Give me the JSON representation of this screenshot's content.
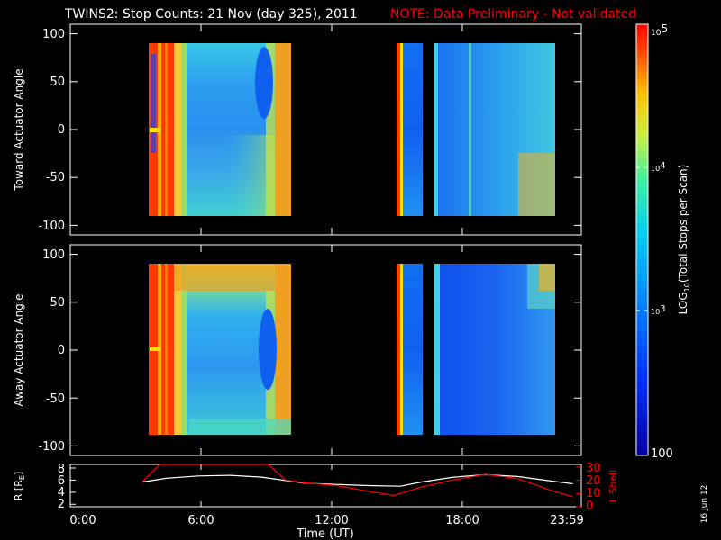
{
  "header": {
    "title": "TWINS2: Stop Counts: 21 Nov (day 325), 2011",
    "note": "NOTE: Data Preliminary - Not validated"
  },
  "stamp": "16 Jun 12",
  "colors": {
    "background": "#000000",
    "foreground": "#ffffff",
    "note": "#ff0000",
    "l_shell": "#ff0000",
    "r_line": "#ffffff"
  },
  "chart_data": [
    {
      "type": "heatmap",
      "panel": "toward",
      "ylabel": "Toward Actuator Angle",
      "ylim": [
        -110,
        110
      ],
      "yticks": [
        -100,
        -50,
        0,
        50,
        100
      ],
      "xlim": [
        0,
        24
      ],
      "xticks_hours": [
        0,
        6,
        12,
        18,
        23.983
      ],
      "data_coverage_ut": [
        [
          3.4,
          10.7
        ],
        [
          15.2,
          16.5
        ],
        [
          17.1,
          24.0
        ]
      ],
      "angle_range": [
        -90,
        90
      ],
      "colorscale": "log10, 100 to 1e5"
    },
    {
      "type": "heatmap",
      "panel": "away",
      "ylabel": "Away Actuator Angle",
      "ylim": [
        -110,
        110
      ],
      "yticks": [
        -100,
        -50,
        0,
        50,
        100
      ],
      "xlim": [
        0,
        24
      ],
      "xticks_hours": [
        0,
        6,
        12,
        18,
        23.983
      ],
      "data_coverage_ut": [
        [
          3.4,
          10.7
        ],
        [
          15.2,
          16.5
        ],
        [
          17.1,
          24.0
        ]
      ],
      "angle_range": [
        -90,
        90
      ],
      "colorscale": "log10, 100 to 1e5"
    },
    {
      "type": "line",
      "panel": "orbit",
      "ylabel_left": "R (RE)",
      "ylabel_right": "L Shell",
      "left_ylim": [
        1.5,
        8.5
      ],
      "left_yticks": [
        2,
        4,
        6,
        8
      ],
      "right_ylim": [
        0,
        30
      ],
      "right_yticks": [
        0,
        10,
        20,
        30
      ],
      "xlim": [
        0,
        24
      ],
      "xticks": [
        "0:00",
        "6:00",
        "12:00",
        "18:00",
        "23:59"
      ],
      "xlabel": "Time (UT)",
      "series": [
        {
          "name": "R",
          "axis": "left",
          "x": [
            3.4,
            4.5,
            6.0,
            7.5,
            9.0,
            10.0,
            11.0,
            12.5,
            14.0,
            15.5,
            16.5,
            18.0,
            19.5,
            21.0,
            22.5,
            23.6
          ],
          "y": [
            5.6,
            6.2,
            6.6,
            6.7,
            6.4,
            5.9,
            5.4,
            5.2,
            5.0,
            4.9,
            5.6,
            6.4,
            6.8,
            6.5,
            5.8,
            5.3
          ]
        },
        {
          "name": "L Shell",
          "axis": "right",
          "x": [
            3.4,
            4.2,
            9.3,
            10.1,
            11.0,
            12.5,
            14.0,
            15.2,
            16.5,
            18.0,
            19.5,
            21.0,
            22.5,
            23.6
          ],
          "y": [
            18.0,
            30.0,
            30.0,
            19.0,
            17.0,
            15.0,
            11.0,
            8.0,
            14.0,
            19.0,
            23.0,
            20.0,
            12.0,
            7.0
          ]
        }
      ]
    },
    {
      "type": "colorbar",
      "scale": "log",
      "range": [
        100,
        100000
      ],
      "tick_labels": [
        "10",
        "5",
        "10",
        "4",
        "10",
        "3",
        "100"
      ],
      "label": "LOG10(Total Stops per Scan)"
    }
  ],
  "labels": {
    "toward_ylabel": "Toward Actuator Angle",
    "away_ylabel": "Away Actuator Angle",
    "r_label": "R [R",
    "r_sub": "E",
    "r_close": "]",
    "l_label": "L Shell",
    "xlabel": "Time (UT)",
    "cb_label_a": "LOG",
    "cb_label_sub": "10",
    "cb_label_b": "(Total Stops per Scan)",
    "ytick_pos100": "100",
    "ytick_pos50": "50",
    "ytick_0": "0",
    "ytick_neg50": "-50",
    "ytick_neg100": "-100",
    "r_tick_8": "8",
    "r_tick_6": "6",
    "r_tick_4": "4",
    "r_tick_2": "2",
    "l_tick_30": "30",
    "l_tick_20": "20",
    "l_tick_10": "10",
    "l_tick_0": "0",
    "xtick_0": "0:00",
    "xtick_6": "6:00",
    "xtick_12": "12:00",
    "xtick_18": "18:00",
    "xtick_end": "23:59",
    "cb_10_a": "10",
    "cb_exp_5": "5",
    "cb_10_b": "10",
    "cb_exp_4": "4",
    "cb_10_c": "10",
    "cb_exp_3": "3",
    "cb_100": "100"
  }
}
